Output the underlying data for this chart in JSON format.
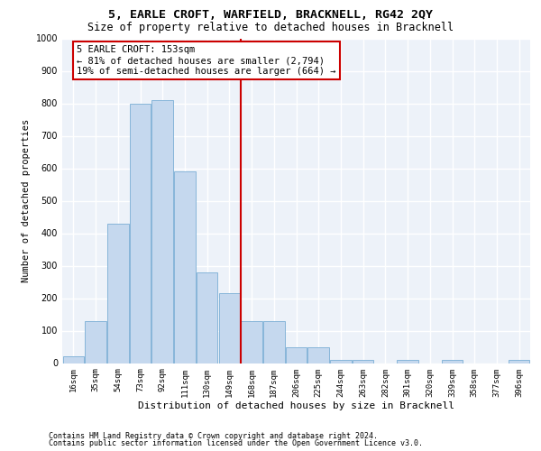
{
  "title": "5, EARLE CROFT, WARFIELD, BRACKNELL, RG42 2QY",
  "subtitle": "Size of property relative to detached houses in Bracknell",
  "xlabel": "Distribution of detached houses by size in Bracknell",
  "ylabel": "Number of detached properties",
  "categories": [
    "16sqm",
    "35sqm",
    "54sqm",
    "73sqm",
    "92sqm",
    "111sqm",
    "130sqm",
    "149sqm",
    "168sqm",
    "187sqm",
    "206sqm",
    "225sqm",
    "244sqm",
    "263sqm",
    "282sqm",
    "301sqm",
    "320sqm",
    "339sqm",
    "358sqm",
    "377sqm",
    "396sqm"
  ],
  "values": [
    20,
    130,
    430,
    800,
    810,
    590,
    280,
    215,
    130,
    130,
    50,
    50,
    10,
    10,
    0,
    10,
    0,
    10,
    0,
    0,
    10
  ],
  "bar_color": "#c5d8ee",
  "bar_edge_color": "#7aaed4",
  "vline_color": "#cc0000",
  "vline_pos": 7.5,
  "annotation_line1": "5 EARLE CROFT: 153sqm",
  "annotation_line2": "← 81% of detached houses are smaller (2,794)",
  "annotation_line3": "19% of semi-detached houses are larger (664) →",
  "annotation_box_edgecolor": "#cc0000",
  "bg_color": "#edf2f9",
  "grid_color": "#ffffff",
  "footer1": "Contains HM Land Registry data © Crown copyright and database right 2024.",
  "footer2": "Contains public sector information licensed under the Open Government Licence v3.0.",
  "ylim": [
    0,
    1000
  ],
  "yticks": [
    0,
    100,
    200,
    300,
    400,
    500,
    600,
    700,
    800,
    900,
    1000
  ],
  "title_fontsize": 9.5,
  "subtitle_fontsize": 8.5,
  "tick_fontsize": 6.5,
  "ylabel_fontsize": 7.5,
  "xlabel_fontsize": 8.0,
  "footer_fontsize": 6.0,
  "ann_fontsize": 7.5
}
